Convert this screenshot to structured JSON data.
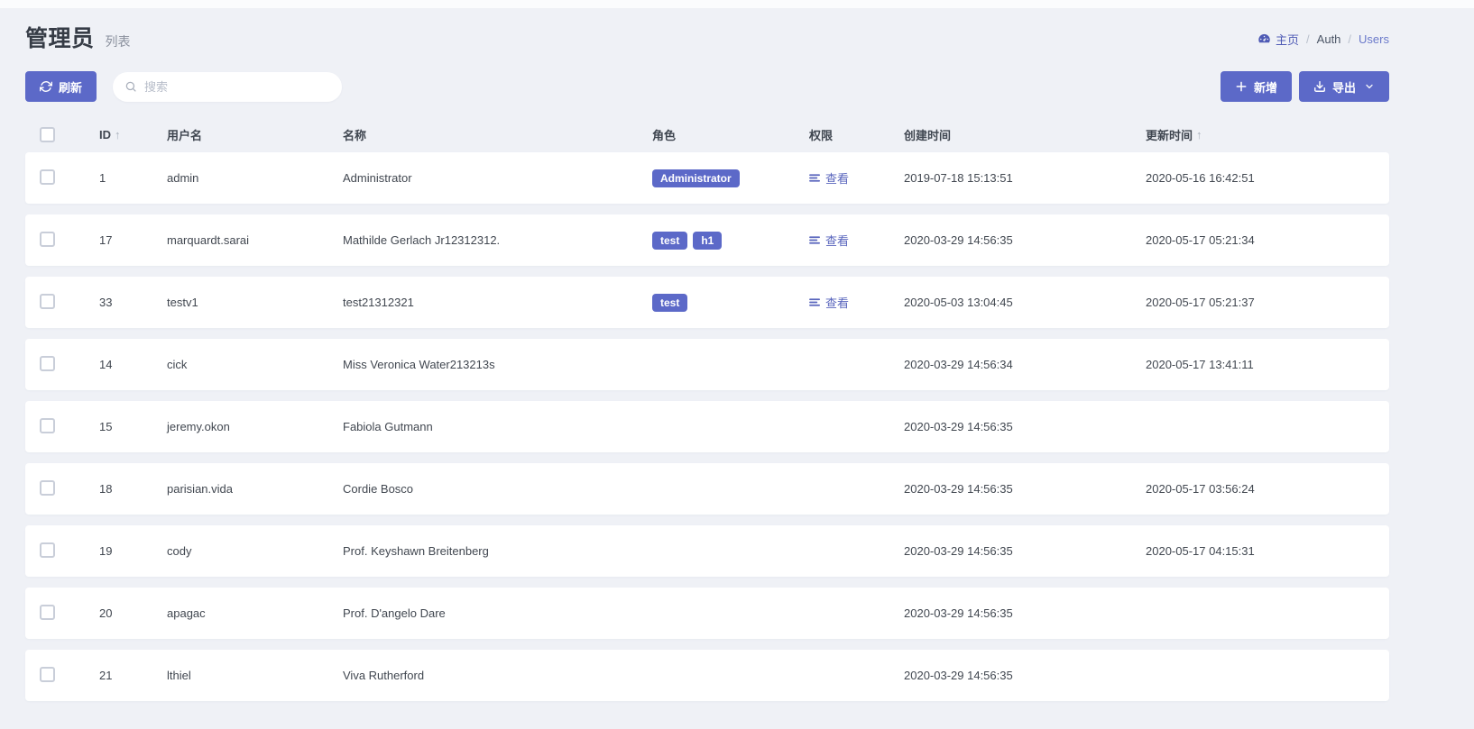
{
  "page": {
    "title": "管理员",
    "subtitle": "列表"
  },
  "breadcrumb": {
    "home_label": "主页",
    "separator": "/",
    "items": [
      "Auth",
      "Users"
    ]
  },
  "toolbar": {
    "refresh_label": "刷新",
    "search_placeholder": "搜索",
    "search_value": "",
    "add_label": "新增",
    "export_label": "导出"
  },
  "table": {
    "sort_asc": "↑",
    "view_label": "查看",
    "columns": [
      {
        "key": "id",
        "label": "ID",
        "sorted": true
      },
      {
        "key": "username",
        "label": "用户名",
        "sorted": false
      },
      {
        "key": "name",
        "label": "名称",
        "sorted": false
      },
      {
        "key": "roles",
        "label": "角色",
        "sorted": false
      },
      {
        "key": "permissions",
        "label": "权限",
        "sorted": false
      },
      {
        "key": "created_at",
        "label": "创建时间",
        "sorted": false
      },
      {
        "key": "updated_at",
        "label": "更新时间",
        "sorted": true
      }
    ],
    "rows": [
      {
        "id": "1",
        "username": "admin",
        "name": "Administrator",
        "roles": [
          "Administrator"
        ],
        "has_permission_link": true,
        "created_at": "2019-07-18 15:13:51",
        "updated_at": "2020-05-16 16:42:51"
      },
      {
        "id": "17",
        "username": "marquardt.sarai",
        "name": "Mathilde Gerlach Jr12312312.",
        "roles": [
          "test",
          "h1"
        ],
        "has_permission_link": true,
        "created_at": "2020-03-29 14:56:35",
        "updated_at": "2020-05-17 05:21:34"
      },
      {
        "id": "33",
        "username": "testv1",
        "name": "test21312321",
        "roles": [
          "test"
        ],
        "has_permission_link": true,
        "created_at": "2020-05-03 13:04:45",
        "updated_at": "2020-05-17 05:21:37"
      },
      {
        "id": "14",
        "username": "cick",
        "name": "Miss Veronica Water213213s",
        "roles": [],
        "has_permission_link": false,
        "created_at": "2020-03-29 14:56:34",
        "updated_at": "2020-05-17 13:41:11"
      },
      {
        "id": "15",
        "username": "jeremy.okon",
        "name": "Fabiola Gutmann",
        "roles": [],
        "has_permission_link": false,
        "created_at": "2020-03-29 14:56:35",
        "updated_at": ""
      },
      {
        "id": "18",
        "username": "parisian.vida",
        "name": "Cordie Bosco",
        "roles": [],
        "has_permission_link": false,
        "created_at": "2020-03-29 14:56:35",
        "updated_at": "2020-05-17 03:56:24"
      },
      {
        "id": "19",
        "username": "cody",
        "name": "Prof. Keyshawn Breitenberg",
        "roles": [],
        "has_permission_link": false,
        "created_at": "2020-03-29 14:56:35",
        "updated_at": "2020-05-17 04:15:31"
      },
      {
        "id": "20",
        "username": "apagac",
        "name": "Prof. D'angelo Dare",
        "roles": [],
        "has_permission_link": false,
        "created_at": "2020-03-29 14:56:35",
        "updated_at": ""
      },
      {
        "id": "21",
        "username": "lthiel",
        "name": "Viva Rutherford",
        "roles": [],
        "has_permission_link": false,
        "created_at": "2020-03-29 14:56:35",
        "updated_at": ""
      }
    ]
  },
  "colors": {
    "primary": "#5c69c8",
    "link": "#5965bd",
    "text": "#414750",
    "muted": "#9aa3b0",
    "background": "#eff1f6"
  }
}
